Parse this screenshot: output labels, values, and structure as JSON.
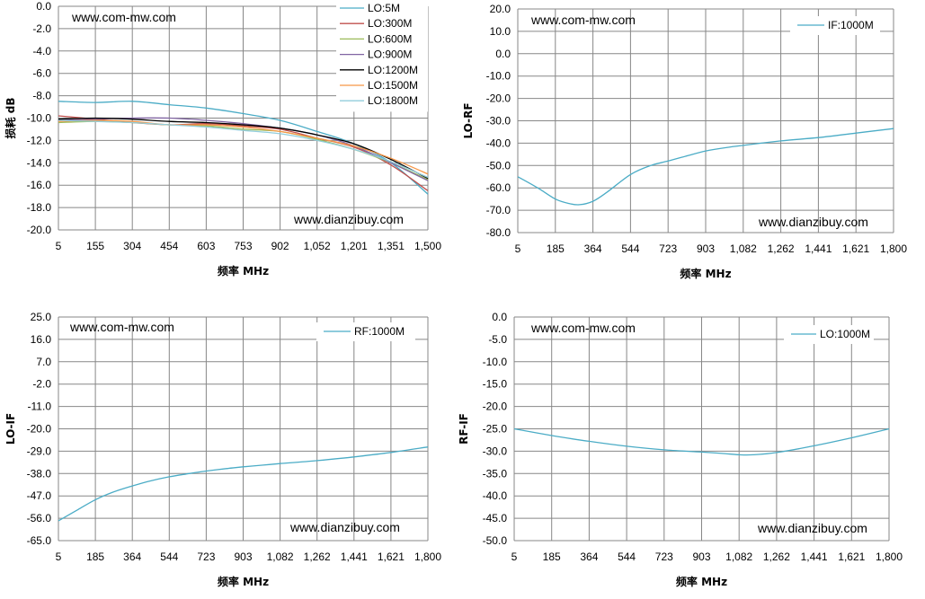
{
  "chart_data": [
    {
      "type": "line",
      "xlabel": "频率 MHz",
      "ylabel": "损耗 dB",
      "ylim": [
        -20,
        0
      ],
      "yticks": [
        "0.0",
        "-2.0",
        "-4.0",
        "-6.0",
        "-8.0",
        "-10.0",
        "-12.0",
        "-14.0",
        "-16.0",
        "-18.0",
        "-20.0"
      ],
      "xlim": [
        5,
        1500
      ],
      "xticks": [
        "5",
        "155",
        "304",
        "454",
        "603",
        "753",
        "902",
        "1,052",
        "1,201",
        "1,351",
        "1,500"
      ],
      "watermark_top": "www.com-mw.com",
      "watermark_bottom": "www.dianzibuy.com",
      "legend_position": "top-right",
      "grid": true,
      "series": [
        {
          "name": "LO:5M",
          "color": "#4bacc6",
          "x": [
            5,
            155,
            304,
            454,
            603,
            753,
            902,
            1052,
            1201,
            1351,
            1500
          ],
          "values": [
            -8.5,
            -8.6,
            -8.5,
            -8.8,
            -9.1,
            -9.6,
            -10.2,
            -11.2,
            -12.3,
            -14.0,
            -16.8
          ]
        },
        {
          "name": "LO:300M",
          "color": "#c0504d",
          "x": [
            5,
            155,
            304,
            454,
            603,
            753,
            902,
            1052,
            1201,
            1351,
            1500
          ],
          "values": [
            -9.8,
            -10.1,
            -10.4,
            -10.6,
            -10.5,
            -10.7,
            -11.0,
            -11.8,
            -12.6,
            -14.2,
            -16.5
          ]
        },
        {
          "name": "LO:600M",
          "color": "#9bbb59",
          "x": [
            5,
            155,
            304,
            454,
            603,
            753,
            902,
            1052,
            1201,
            1351,
            1500
          ],
          "values": [
            -10.4,
            -10.3,
            -10.4,
            -10.6,
            -10.7,
            -11.0,
            -11.2,
            -11.9,
            -12.8,
            -14.0,
            -15.5
          ]
        },
        {
          "name": "LO:900M",
          "color": "#8064a2",
          "x": [
            5,
            155,
            304,
            454,
            603,
            753,
            902,
            1052,
            1201,
            1351,
            1500
          ],
          "values": [
            -10.2,
            -10.1,
            -10.0,
            -10.0,
            -10.2,
            -10.5,
            -10.9,
            -11.5,
            -12.5,
            -14.0,
            -15.6
          ]
        },
        {
          "name": "LO:1200M",
          "color": "#000000",
          "x": [
            5,
            155,
            304,
            454,
            603,
            753,
            902,
            1052,
            1201,
            1351,
            1500
          ],
          "values": [
            -10.1,
            -10.0,
            -10.1,
            -10.3,
            -10.4,
            -10.6,
            -10.9,
            -11.5,
            -12.3,
            -13.7,
            -15.4
          ]
        },
        {
          "name": "LO:1500M",
          "color": "#f79646",
          "x": [
            5,
            155,
            304,
            454,
            603,
            753,
            902,
            1052,
            1201,
            1351,
            1500
          ],
          "values": [
            -10.3,
            -10.2,
            -10.3,
            -10.6,
            -10.6,
            -10.8,
            -11.2,
            -11.8,
            -12.5,
            -13.6,
            -15.0
          ]
        },
        {
          "name": "LO:1800M",
          "color": "#92cddc",
          "x": [
            5,
            155,
            304,
            454,
            603,
            753,
            902,
            1052,
            1201,
            1351,
            1500
          ],
          "values": [
            -10.2,
            -10.3,
            -10.4,
            -10.6,
            -10.8,
            -11.1,
            -11.4,
            -12.0,
            -12.8,
            -13.9,
            -15.3
          ]
        }
      ]
    },
    {
      "type": "line",
      "xlabel": "频率 MHz",
      "ylabel": "LO-RF",
      "ylim": [
        -80,
        20
      ],
      "yticks": [
        "20.0",
        "10.0",
        "0.0",
        "-10.0",
        "-20.0",
        "-30.0",
        "-40.0",
        "-50.0",
        "-60.0",
        "-70.0",
        "-80.0"
      ],
      "xlim": [
        5,
        1800
      ],
      "xticks": [
        "5",
        "185",
        "364",
        "544",
        "723",
        "903",
        "1,082",
        "1,262",
        "1,441",
        "1,621",
        "1,800"
      ],
      "watermark_top": "www.com-mw.com",
      "watermark_bottom": "www.dianzibuy.com",
      "legend_position": "top-right",
      "grid": true,
      "series": [
        {
          "name": "IF:1000M",
          "color": "#4bacc6",
          "x": [
            5,
            100,
            185,
            250,
            300,
            364,
            430,
            544,
            640,
            723,
            820,
            903,
            1000,
            1082,
            1262,
            1441,
            1621,
            1800
          ],
          "values": [
            -55,
            -60,
            -65,
            -67,
            -67.5,
            -66,
            -62,
            -54,
            -50,
            -48,
            -45.5,
            -43.5,
            -42,
            -41,
            -39,
            -37.5,
            -35.5,
            -33.5
          ]
        }
      ]
    },
    {
      "type": "line",
      "xlabel": "频率 MHz",
      "ylabel": "LO-IF",
      "ylim": [
        -65,
        25
      ],
      "yticks": [
        "25.0",
        "16.0",
        "7.0",
        "-2.0",
        "-11.0",
        "-20.0",
        "-29.0",
        "-38.0",
        "-47.0",
        "-56.0",
        "-65.0"
      ],
      "xlim": [
        5,
        1800
      ],
      "xticks": [
        "5",
        "185",
        "364",
        "544",
        "723",
        "903",
        "1,082",
        "1,262",
        "1,441",
        "1,621",
        "1,800"
      ],
      "watermark_top": "www.com-mw.com",
      "watermark_bottom": "www.dianzibuy.com",
      "legend_position": "top-right",
      "grid": true,
      "series": [
        {
          "name": "RF:1000M",
          "color": "#4bacc6",
          "x": [
            5,
            100,
            185,
            270,
            364,
            450,
            544,
            640,
            723,
            820,
            903,
            1000,
            1082,
            1262,
            1441,
            1621,
            1800
          ],
          "values": [
            -57,
            -52.5,
            -48.5,
            -45.5,
            -43,
            -41,
            -39.3,
            -38,
            -37,
            -36,
            -35.3,
            -34.6,
            -34,
            -32.8,
            -31.3,
            -29.5,
            -27.3
          ]
        }
      ]
    },
    {
      "type": "line",
      "xlabel": "频率 MHz",
      "ylabel": "RF-IF",
      "ylim": [
        -50,
        0
      ],
      "yticks": [
        "0.0",
        "-5.0",
        "-10.0",
        "-15.0",
        "-20.0",
        "-25.0",
        "-30.0",
        "-35.0",
        "-40.0",
        "-45.0",
        "-50.0"
      ],
      "xlim": [
        5,
        1800
      ],
      "xticks": [
        "5",
        "185",
        "364",
        "544",
        "723",
        "903",
        "1,082",
        "1,262",
        "1,441",
        "1,621",
        "1,800"
      ],
      "watermark_top": "www.com-mw.com",
      "watermark_bottom": "www.dianzibuy.com",
      "legend_position": "top-right",
      "grid": true,
      "series": [
        {
          "name": "LO:1000M",
          "color": "#4bacc6",
          "x": [
            5,
            185,
            364,
            544,
            723,
            903,
            1000,
            1082,
            1150,
            1262,
            1441,
            1621,
            1800
          ],
          "values": [
            -25,
            -26.5,
            -27.8,
            -28.9,
            -29.7,
            -30.2,
            -30.5,
            -30.8,
            -30.8,
            -30.3,
            -28.8,
            -27,
            -25
          ]
        }
      ]
    }
  ]
}
